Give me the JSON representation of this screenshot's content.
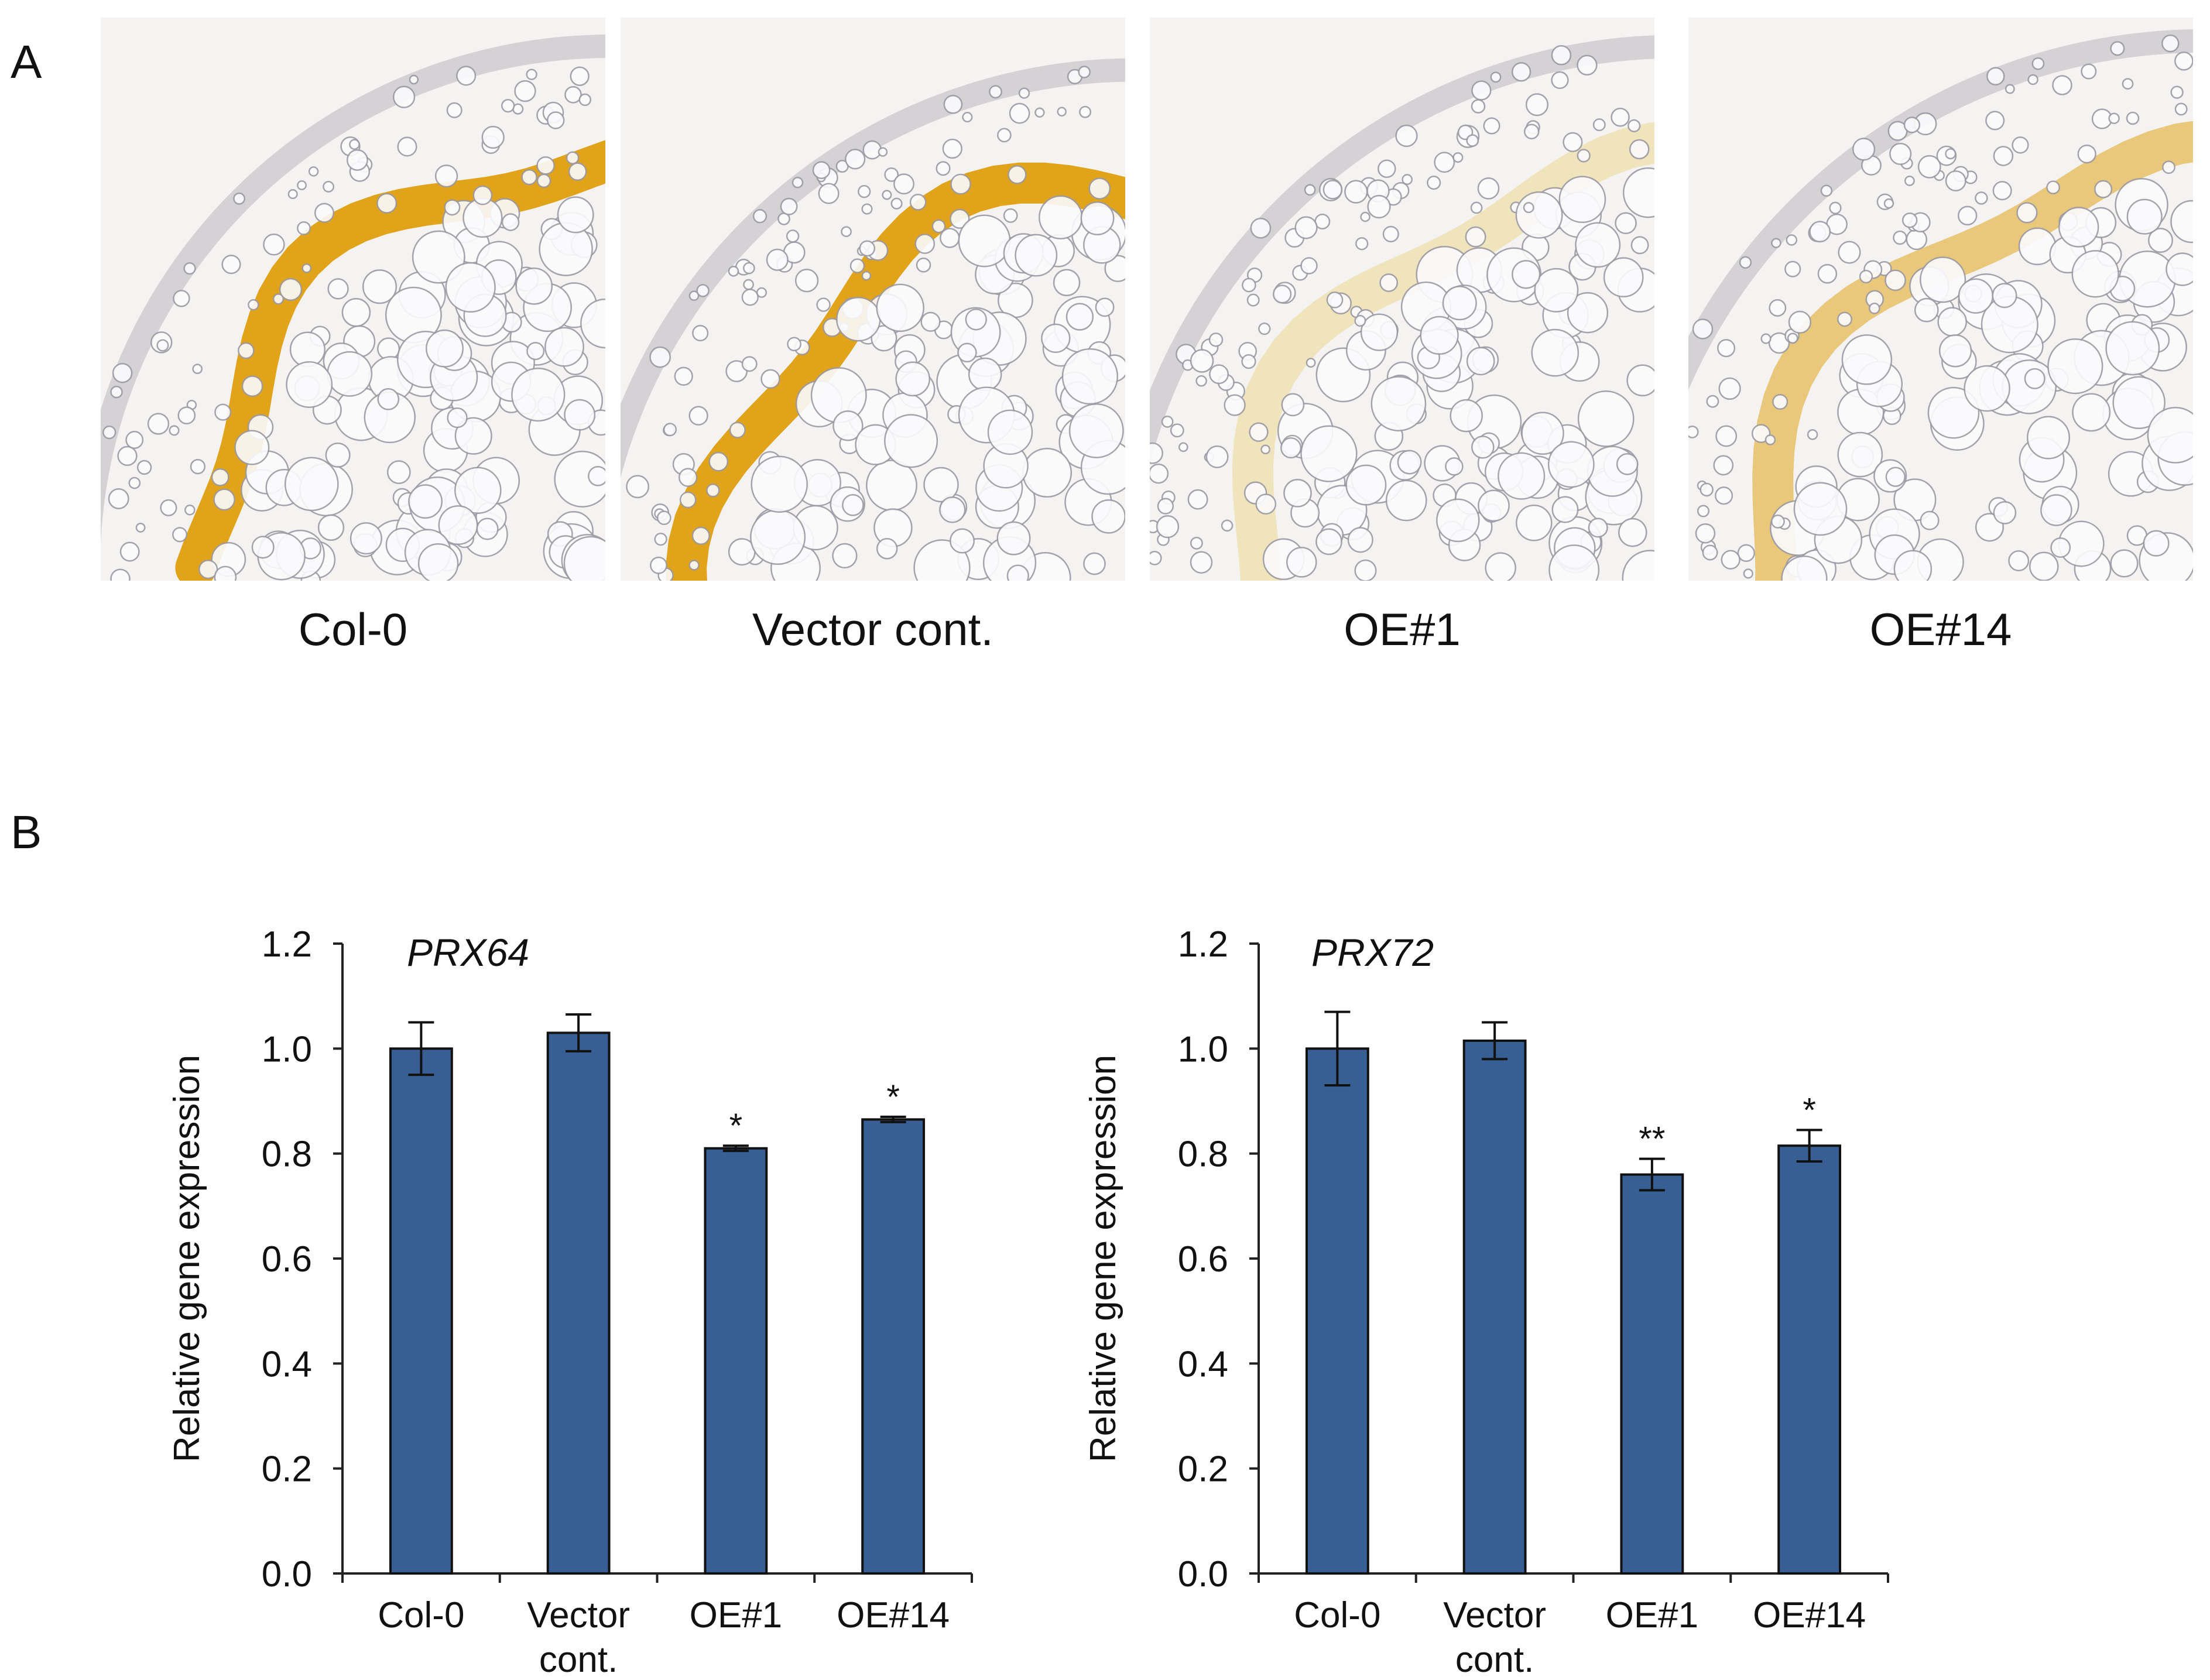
{
  "panel_labels": [
    "A",
    "B"
  ],
  "micrographs": [
    {
      "label": "Col-0",
      "description_icon": "stem-cross-section-image"
    },
    {
      "label": "Vector cont.",
      "description_icon": "stem-cross-section-image"
    },
    {
      "label": "OE#1",
      "description_icon": "stem-cross-section-image"
    },
    {
      "label": "OE#14",
      "description_icon": "stem-cross-section-image"
    }
  ],
  "colors": {
    "bar": "#375F93",
    "bar_edge": "#111111",
    "xylem_stain": "#E0A31A",
    "xylem_stain_pale": "#E8C95A",
    "cell_wall": "#9C9AA4"
  },
  "chart_data": [
    {
      "type": "bar",
      "title": "PRX64",
      "categories": [
        "Col-0",
        "Vector\ncont.",
        "OE#1",
        "OE#14"
      ],
      "values": [
        1.0,
        1.03,
        0.81,
        0.865
      ],
      "errors": [
        0.05,
        0.035,
        0.005,
        0.005
      ],
      "significance": [
        "",
        "",
        "*",
        "*"
      ],
      "xlabel": "",
      "ylabel": "Relative gene expression",
      "ylim": [
        0,
        1.2
      ],
      "yticks": [
        "0.0",
        "0.2",
        "0.4",
        "0.6",
        "0.8",
        "1.0",
        "1.2"
      ],
      "grid": false
    },
    {
      "type": "bar",
      "title": "PRX72",
      "categories": [
        "Col-0",
        "Vector\ncont.",
        "OE#1",
        "OE#14"
      ],
      "values": [
        1.0,
        1.015,
        0.76,
        0.815
      ],
      "errors": [
        0.07,
        0.035,
        0.03,
        0.03
      ],
      "significance": [
        "",
        "",
        "**",
        "*"
      ],
      "xlabel": "",
      "ylabel": "Relative gene expression",
      "ylim": [
        0,
        1.2
      ],
      "yticks": [
        "0.0",
        "0.2",
        "0.4",
        "0.6",
        "0.8",
        "1.0",
        "1.2"
      ],
      "grid": false
    }
  ]
}
